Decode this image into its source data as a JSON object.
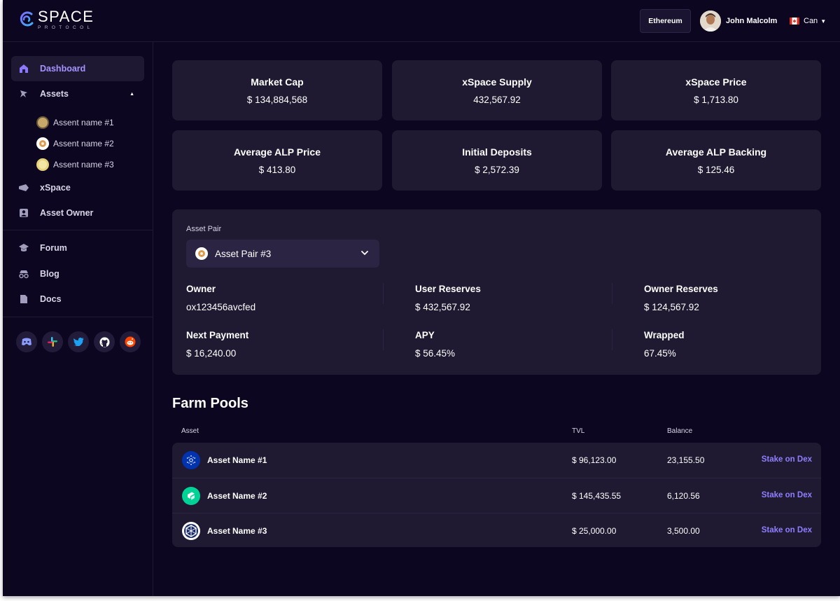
{
  "brand": {
    "name": "SPACE",
    "tagline": "PROTOCOL"
  },
  "header": {
    "network": "Ethereum",
    "user_name": "John Malcolm",
    "language": "Can"
  },
  "sidebar": {
    "items": [
      {
        "label": "Dashboard",
        "icon": "home-icon",
        "active": true
      },
      {
        "label": "Assets",
        "icon": "assets-icon",
        "expanded": true
      },
      {
        "label": "xSpace",
        "icon": "xspace-icon"
      },
      {
        "label": "Asset Owner",
        "icon": "user-icon"
      },
      {
        "label": "Forum",
        "icon": "forum-icon"
      },
      {
        "label": "Blog",
        "icon": "blog-icon"
      },
      {
        "label": "Docs",
        "icon": "docs-icon"
      }
    ],
    "sub_items": [
      {
        "label": "Assent name #1"
      },
      {
        "label": "Assent name #2"
      },
      {
        "label": "Assent name #3"
      }
    ],
    "socials": [
      "discord-icon",
      "slack-icon",
      "twitter-icon",
      "github-icon",
      "reddit-icon"
    ]
  },
  "stats": [
    {
      "title": "Market Cap",
      "value": "$ 134,884,568"
    },
    {
      "title": "xSpace Supply",
      "value": "432,567.92"
    },
    {
      "title": "xSpace Price",
      "value": "$ 1,713.80"
    },
    {
      "title": "Average ALP Price",
      "value": "$ 413.80"
    },
    {
      "title": "Initial Deposits",
      "value": "$ 2,572.39"
    },
    {
      "title": "Average ALP Backing",
      "value": "$ 125.46"
    }
  ],
  "asset_pair": {
    "label": "Asset Pair",
    "selected": "Asset Pair #3",
    "metrics": [
      {
        "title": "Owner",
        "value": "ox123456avcfed"
      },
      {
        "title": "User Reserves",
        "value": "$ 432,567.92"
      },
      {
        "title": "Owner Reserves",
        "value": "$ 124,567.92"
      },
      {
        "title": "Next Payment",
        "value": "$ 16,240.00"
      },
      {
        "title": "APY",
        "value": "$ 56.45%"
      },
      {
        "title": "Wrapped",
        "value": "67.45%"
      }
    ]
  },
  "farm_pools": {
    "title": "Farm Pools",
    "columns": [
      "Asset",
      "TVL",
      "Balance"
    ],
    "rows": [
      {
        "name": "Asset Name #1",
        "tvl": "$ 96,123.00",
        "balance": "23,155.50",
        "action": "Stake on Dex",
        "icon": "cardano-icon",
        "color": "#0033ad"
      },
      {
        "name": "Asset Name #2",
        "tvl": "$ 145,435.55",
        "balance": "6,120.56",
        "action": "Stake on Dex",
        "icon": "compound-icon",
        "color": "#00d395"
      },
      {
        "name": "Asset Name #3",
        "tvl": "$ 25,000.00",
        "balance": "3,500.00",
        "action": "Stake on Dex",
        "icon": "network-icon",
        "color": "#ffffff"
      }
    ]
  },
  "colors": {
    "background": "#0c0620",
    "card": "#1f1a31",
    "accent": "#8f7fff",
    "active_nav": "#a593ff"
  }
}
